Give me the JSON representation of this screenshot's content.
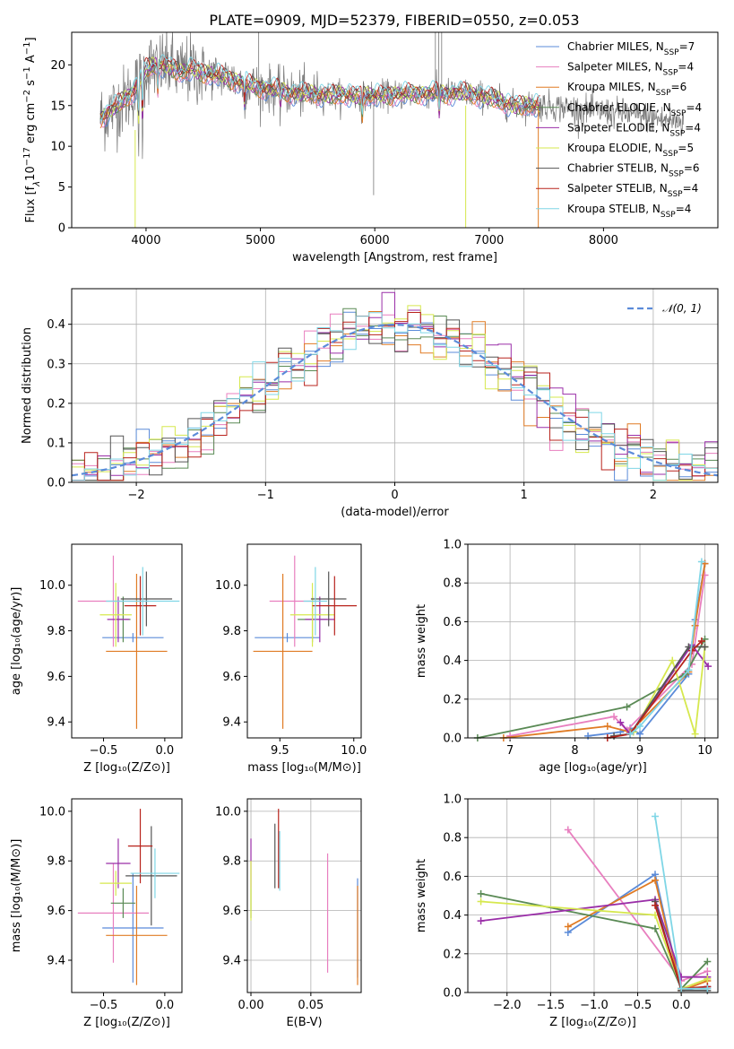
{
  "title": "PLATE=0909, MJD=52379, FIBERID=0550, z=0.053",
  "colors": {
    "chabrier_miles": "#5b8bd9",
    "salpeter_miles": "#e87fbf",
    "kroupa_miles": "#e07b24",
    "chabrier_elodie": "#5a8a55",
    "salpeter_elodie": "#9a2ea8",
    "kroupa_elodie": "#d6e84e",
    "chabrier_stelib": "#555555",
    "salpeter_stelib": "#b8231d",
    "kroupa_stelib": "#7fd6e6",
    "gauss": "#5b8bd9"
  },
  "legend": [
    {
      "key": "chabrier_miles",
      "label": "Chabrier MILES, N",
      "n": "=7"
    },
    {
      "key": "salpeter_miles",
      "label": "Salpeter MILES, N",
      "n": "=4"
    },
    {
      "key": "kroupa_miles",
      "label": "Kroupa MILES, N",
      "n": "=6"
    },
    {
      "key": "chabrier_elodie",
      "label": "Chabrier ELODIE, N",
      "n": "=4"
    },
    {
      "key": "salpeter_elodie",
      "label": "Salpeter ELODIE, N",
      "n": "=4"
    },
    {
      "key": "kroupa_elodie",
      "label": "Kroupa ELODIE, N",
      "n": "=5"
    },
    {
      "key": "chabrier_stelib",
      "label": "Chabrier STELIB, N",
      "n": "=6"
    },
    {
      "key": "salpeter_stelib",
      "label": "Salpeter STELIB, N",
      "n": "=4"
    },
    {
      "key": "kroupa_stelib",
      "label": "Kroupa STELIB, N",
      "n": "=4"
    }
  ],
  "nsub": "SSP",
  "chart_data": [
    {
      "type": "line",
      "xlabel": "wavelength [Angstrom, rest frame]",
      "ylabel_parts": [
        "Flux [f",
        "λ",
        "10",
        "−17",
        " erg cm",
        "−2",
        " s",
        "−1",
        " A",
        "−1",
        "]"
      ],
      "xlim": [
        3350,
        9000
      ],
      "ylim": [
        0,
        24
      ],
      "xticks": [
        4000,
        5000,
        6000,
        7000,
        8000
      ],
      "yticks": [
        0,
        5,
        10,
        15,
        20
      ],
      "continuum": [
        [
          3600,
          13.5
        ],
        [
          3700,
          14.5
        ],
        [
          3800,
          15.5
        ],
        [
          3900,
          17.0
        ],
        [
          4000,
          19.5
        ],
        [
          4100,
          20.0
        ],
        [
          4200,
          19.8
        ],
        [
          4300,
          19.0
        ],
        [
          4400,
          19.5
        ],
        [
          4500,
          19.0
        ],
        [
          4700,
          18.5
        ],
        [
          4900,
          17.5
        ],
        [
          5100,
          17.0
        ],
        [
          5300,
          16.5
        ],
        [
          5600,
          16.3
        ],
        [
          6000,
          16.2
        ],
        [
          6400,
          16.5
        ],
        [
          6800,
          16.5
        ],
        [
          7000,
          16.0
        ],
        [
          7200,
          15.0
        ],
        [
          7500,
          15.0
        ],
        [
          7800,
          14.5
        ],
        [
          8200,
          14.0
        ],
        [
          8500,
          13.3
        ],
        [
          8700,
          13.0
        ]
      ],
      "models_end": 7450,
      "data_end": 8700
    },
    {
      "type": "histogram",
      "xlabel": "(data-model)/error",
      "ylabel": "Normed distribution",
      "xlim": [
        -2.5,
        2.5
      ],
      "ylim": [
        0,
        0.49
      ],
      "xticks": [
        -2,
        -1,
        0,
        1,
        2
      ],
      "xtick_labels": [
        "−2",
        "−1",
        "0",
        "1",
        "2"
      ],
      "yticks": [
        0.0,
        0.1,
        0.2,
        0.3,
        0.4
      ],
      "ytick_labels": [
        "0.0",
        "0.1",
        "0.2",
        "0.3",
        "0.4"
      ],
      "bin_width": 0.1,
      "gauss_label": "𝒩(0, 1)",
      "grid": true
    },
    {
      "type": "scatter",
      "xlabel": "Z [log₁₀(Z/Z⊙)]",
      "ylabel": "age  [log₁₀(age/yr)]",
      "xlim": [
        -0.76,
        0.14
      ],
      "ylim": [
        9.33,
        10.18
      ],
      "xticks": [
        -0.5,
        0.0
      ],
      "xtick_labels": [
        "−0.5",
        "0.0"
      ],
      "yticks": [
        9.4,
        9.6,
        9.8,
        10.0
      ],
      "ytick_labels": [
        "9.4",
        "9.6",
        "9.8",
        "10.0"
      ],
      "points": [
        {
          "c": "chabrier_miles",
          "x": -0.26,
          "xerr": 0.25,
          "y": 9.77,
          "yerr": 0.02
        },
        {
          "c": "salpeter_miles",
          "x": -0.42,
          "xerr": 0.29,
          "y": 9.93,
          "yerr": 0.2
        },
        {
          "c": "kroupa_miles",
          "x": -0.23,
          "xerr": 0.25,
          "y": 9.71,
          "yerr": 0.34
        },
        {
          "c": "chabrier_elodie",
          "x": -0.34,
          "xerr": 0.06,
          "y": 9.85,
          "yerr": 0.1
        },
        {
          "c": "salpeter_elodie",
          "x": -0.38,
          "xerr": 0.09,
          "y": 9.85,
          "yerr": 0.1
        },
        {
          "c": "kroupa_elodie",
          "x": -0.4,
          "xerr": 0.13,
          "y": 9.87,
          "yerr": 0.14
        },
        {
          "c": "chabrier_stelib",
          "x": -0.15,
          "xerr": 0.21,
          "y": 9.94,
          "yerr": 0.12
        },
        {
          "c": "salpeter_stelib",
          "x": -0.2,
          "xerr": 0.13,
          "y": 9.91,
          "yerr": 0.13
        },
        {
          "c": "kroupa_stelib",
          "x": -0.18,
          "xerr": 0.3,
          "y": 9.93,
          "yerr": 0.15
        }
      ]
    },
    {
      "type": "scatter",
      "xlabel": "mass [log₁₀(M/M⊙)]",
      "ylabel": "",
      "xlim": [
        9.28,
        10.05
      ],
      "ylim": [
        9.33,
        10.18
      ],
      "xticks": [
        9.5,
        10.0
      ],
      "xtick_labels": [
        "9.5",
        "10.0"
      ],
      "yticks": [
        9.4,
        9.6,
        9.8,
        10.0
      ],
      "ytick_labels": [
        "9.4",
        "9.6",
        "9.8",
        "10.0"
      ],
      "points": [
        {
          "c": "chabrier_miles",
          "x": 9.55,
          "xerr": 0.22,
          "y": 9.77,
          "yerr": 0.02
        },
        {
          "c": "salpeter_miles",
          "x": 9.6,
          "xerr": 0.17,
          "y": 9.93,
          "yerr": 0.2
        },
        {
          "c": "kroupa_miles",
          "x": 9.52,
          "xerr": 0.2,
          "y": 9.71,
          "yerr": 0.34
        },
        {
          "c": "chabrier_elodie",
          "x": 9.72,
          "xerr": 0.1,
          "y": 9.85,
          "yerr": 0.1
        },
        {
          "c": "salpeter_elodie",
          "x": 9.77,
          "xerr": 0.1,
          "y": 9.85,
          "yerr": 0.1
        },
        {
          "c": "kroupa_elodie",
          "x": 9.72,
          "xerr": 0.15,
          "y": 9.87,
          "yerr": 0.14
        },
        {
          "c": "chabrier_stelib",
          "x": 9.83,
          "xerr": 0.12,
          "y": 9.94,
          "yerr": 0.12
        },
        {
          "c": "salpeter_stelib",
          "x": 9.87,
          "xerr": 0.15,
          "y": 9.91,
          "yerr": 0.13
        },
        {
          "c": "kroupa_stelib",
          "x": 9.74,
          "xerr": 0.08,
          "y": 9.93,
          "yerr": 0.15
        }
      ]
    },
    {
      "type": "line",
      "xlabel": "age  [log₁₀(age/yr)]",
      "ylabel": "mass weight",
      "xlim": [
        6.35,
        10.2
      ],
      "ylim": [
        0,
        1
      ],
      "xticks": [
        7,
        8,
        9,
        10
      ],
      "xtick_labels": [
        "7",
        "8",
        "9",
        "10"
      ],
      "yticks": [
        0.0,
        0.2,
        0.4,
        0.6,
        0.8,
        1.0
      ],
      "ytick_labels": [
        "0.0",
        "0.2",
        "0.4",
        "0.6",
        "0.8",
        "1.0"
      ],
      "grid": true,
      "series": [
        {
          "c": "chabrier_miles",
          "x": [
            8.2,
            8.7,
            8.85,
            9.0,
            9.75,
            9.85,
            10.0
          ],
          "y": [
            0.01,
            0.03,
            0.05,
            0.02,
            0.33,
            0.61,
            0.9
          ]
        },
        {
          "c": "salpeter_miles",
          "x": [
            7.0,
            8.6,
            8.8,
            9.8,
            10.0
          ],
          "y": [
            0.01,
            0.11,
            0.04,
            0.38,
            0.84
          ]
        },
        {
          "c": "kroupa_miles",
          "x": [
            6.9,
            8.5,
            8.85,
            9.75,
            9.85,
            10.0
          ],
          "y": [
            0.0,
            0.06,
            0.03,
            0.34,
            0.58,
            0.9
          ]
        },
        {
          "c": "chabrier_elodie",
          "x": [
            6.5,
            8.8,
            9.7,
            10.0
          ],
          "y": [
            0.0,
            0.16,
            0.33,
            0.51
          ]
        },
        {
          "c": "salpeter_elodie",
          "x": [
            8.7,
            8.85,
            9.8,
            10.05
          ],
          "y": [
            0.08,
            0.02,
            0.48,
            0.37
          ]
        },
        {
          "c": "kroupa_elodie",
          "x": [
            8.9,
            9.5,
            9.85,
            10.0
          ],
          "y": [
            0.03,
            0.4,
            0.02,
            0.47
          ]
        },
        {
          "c": "chabrier_stelib",
          "x": [
            8.6,
            8.85,
            9.75,
            10.0
          ],
          "y": [
            0.01,
            0.02,
            0.47,
            0.47
          ]
        },
        {
          "c": "salpeter_stelib",
          "x": [
            8.5,
            8.85,
            9.8,
            9.95
          ],
          "y": [
            0.0,
            0.02,
            0.45,
            0.5
          ]
        },
        {
          "c": "kroupa_stelib",
          "x": [
            8.85,
            9.0,
            9.75,
            9.95
          ],
          "y": [
            0.02,
            0.06,
            0.35,
            0.91
          ]
        }
      ]
    },
    {
      "type": "scatter",
      "xlabel": "Z [log₁₀(Z/Z⊙)]",
      "ylabel": "mass [log₁₀(M/M⊙)]",
      "xlim": [
        -0.76,
        0.14
      ],
      "ylim": [
        9.27,
        10.05
      ],
      "xticks": [
        -0.5,
        0.0
      ],
      "xtick_labels": [
        "−0.5",
        "0.0"
      ],
      "yticks": [
        9.4,
        9.6,
        9.8,
        10.0
      ],
      "ytick_labels": [
        "9.4",
        "9.6",
        "9.8",
        "10.0"
      ],
      "points": [
        {
          "c": "chabrier_miles",
          "x": -0.26,
          "xerr": 0.25,
          "y": 9.53,
          "yerr": 0.22
        },
        {
          "c": "salpeter_miles",
          "x": -0.42,
          "xerr": 0.29,
          "y": 9.59,
          "yerr": 0.2
        },
        {
          "c": "kroupa_miles",
          "x": -0.23,
          "xerr": 0.25,
          "y": 9.5,
          "yerr": 0.2
        },
        {
          "c": "chabrier_elodie",
          "x": -0.34,
          "xerr": 0.1,
          "y": 9.63,
          "yerr": 0.06
        },
        {
          "c": "salpeter_elodie",
          "x": -0.38,
          "xerr": 0.1,
          "y": 9.79,
          "yerr": 0.1
        },
        {
          "c": "kroupa_elodie",
          "x": -0.4,
          "xerr": 0.13,
          "y": 9.71,
          "yerr": 0.05
        },
        {
          "c": "chabrier_stelib",
          "x": -0.11,
          "xerr": 0.21,
          "y": 9.74,
          "yerr": 0.2
        },
        {
          "c": "salpeter_stelib",
          "x": -0.2,
          "xerr": 0.1,
          "y": 9.86,
          "yerr": 0.15
        },
        {
          "c": "kroupa_stelib",
          "x": -0.08,
          "xerr": 0.2,
          "y": 9.75,
          "yerr": 0.1
        }
      ]
    },
    {
      "type": "scatter",
      "xlabel": "E(B-V)",
      "ylabel": "",
      "xlim": [
        -0.003,
        0.092
      ],
      "ylim": [
        9.27,
        10.05
      ],
      "xticks": [
        0.0,
        0.05
      ],
      "xtick_labels": [
        "0.00",
        "0.05"
      ],
      "yticks": [
        9.4,
        9.6,
        9.8,
        10.0
      ],
      "ytick_labels": [
        "9.4",
        "9.6",
        "9.8",
        "10.0"
      ],
      "grid": true,
      "points": [
        {
          "c": "chabrier_miles",
          "x": 0.089,
          "xerr": 0.0,
          "y": 9.53,
          "yerr": 0.2
        },
        {
          "c": "salpeter_miles",
          "x": 0.064,
          "xerr": 0.0,
          "y": 9.59,
          "yerr": 0.24
        },
        {
          "c": "kroupa_miles",
          "x": 0.089,
          "xerr": 0.0,
          "y": 9.5,
          "yerr": 0.2
        },
        {
          "c": "chabrier_elodie",
          "x": 0.0,
          "xerr": 0.0,
          "y": 9.63,
          "yerr": 0.06
        },
        {
          "c": "salpeter_elodie",
          "x": 0.0,
          "xerr": 0.0,
          "y": 9.79,
          "yerr": 0.1
        },
        {
          "c": "kroupa_elodie",
          "x": 0.0,
          "xerr": 0.0,
          "y": 9.68,
          "yerr": 0.12
        },
        {
          "c": "chabrier_stelib",
          "x": 0.02,
          "xerr": 0.0,
          "y": 9.82,
          "yerr": 0.13
        },
        {
          "c": "salpeter_stelib",
          "x": 0.023,
          "xerr": 0.0,
          "y": 9.85,
          "yerr": 0.16
        },
        {
          "c": "kroupa_stelib",
          "x": 0.024,
          "xerr": 0.0,
          "y": 9.8,
          "yerr": 0.12
        }
      ]
    },
    {
      "type": "line",
      "xlabel": "Z [log₁₀(Z/Z⊙)]",
      "ylabel": "mass weight",
      "xlim": [
        -2.45,
        0.42
      ],
      "ylim": [
        0,
        1
      ],
      "xticks": [
        -2.0,
        -1.5,
        -1.0,
        -0.5,
        0.0
      ],
      "xtick_labels": [
        "−2.0",
        "−1.5",
        "−1.0",
        "−0.5",
        "0.0"
      ],
      "yticks": [
        0.0,
        0.2,
        0.4,
        0.6,
        0.8,
        1.0
      ],
      "ytick_labels": [
        "0.0",
        "0.2",
        "0.4",
        "0.6",
        "0.8",
        "1.0"
      ],
      "grid": true,
      "series": [
        {
          "c": "chabrier_miles",
          "x": [
            -1.3,
            -0.3,
            0.0,
            0.3
          ],
          "y": [
            0.31,
            0.61,
            0.01,
            0.03
          ]
        },
        {
          "c": "salpeter_miles",
          "x": [
            -1.3,
            0.0,
            0.3
          ],
          "y": [
            0.84,
            0.06,
            0.11
          ]
        },
        {
          "c": "kroupa_miles",
          "x": [
            -1.3,
            -0.3,
            0.0,
            0.3
          ],
          "y": [
            0.34,
            0.58,
            0.01,
            0.06
          ]
        },
        {
          "c": "chabrier_elodie",
          "x": [
            -2.3,
            -0.3,
            0.0,
            0.3
          ],
          "y": [
            0.51,
            0.33,
            0.02,
            0.16
          ]
        },
        {
          "c": "salpeter_elodie",
          "x": [
            -2.3,
            -0.3,
            0.0,
            0.3
          ],
          "y": [
            0.37,
            0.48,
            0.08,
            0.08
          ]
        },
        {
          "c": "kroupa_elodie",
          "x": [
            -2.3,
            -0.3,
            0.0,
            0.3
          ],
          "y": [
            0.47,
            0.4,
            0.02,
            0.07
          ]
        },
        {
          "c": "chabrier_stelib",
          "x": [
            -0.3,
            0.0,
            0.3
          ],
          "y": [
            0.47,
            0.01,
            0.01
          ]
        },
        {
          "c": "salpeter_stelib",
          "x": [
            -0.3,
            0.0,
            0.3
          ],
          "y": [
            0.45,
            0.02,
            0.03
          ]
        },
        {
          "c": "kroupa_stelib",
          "x": [
            -0.3,
            0.0,
            0.3
          ],
          "y": [
            0.91,
            0.02,
            0.02
          ]
        }
      ]
    }
  ]
}
